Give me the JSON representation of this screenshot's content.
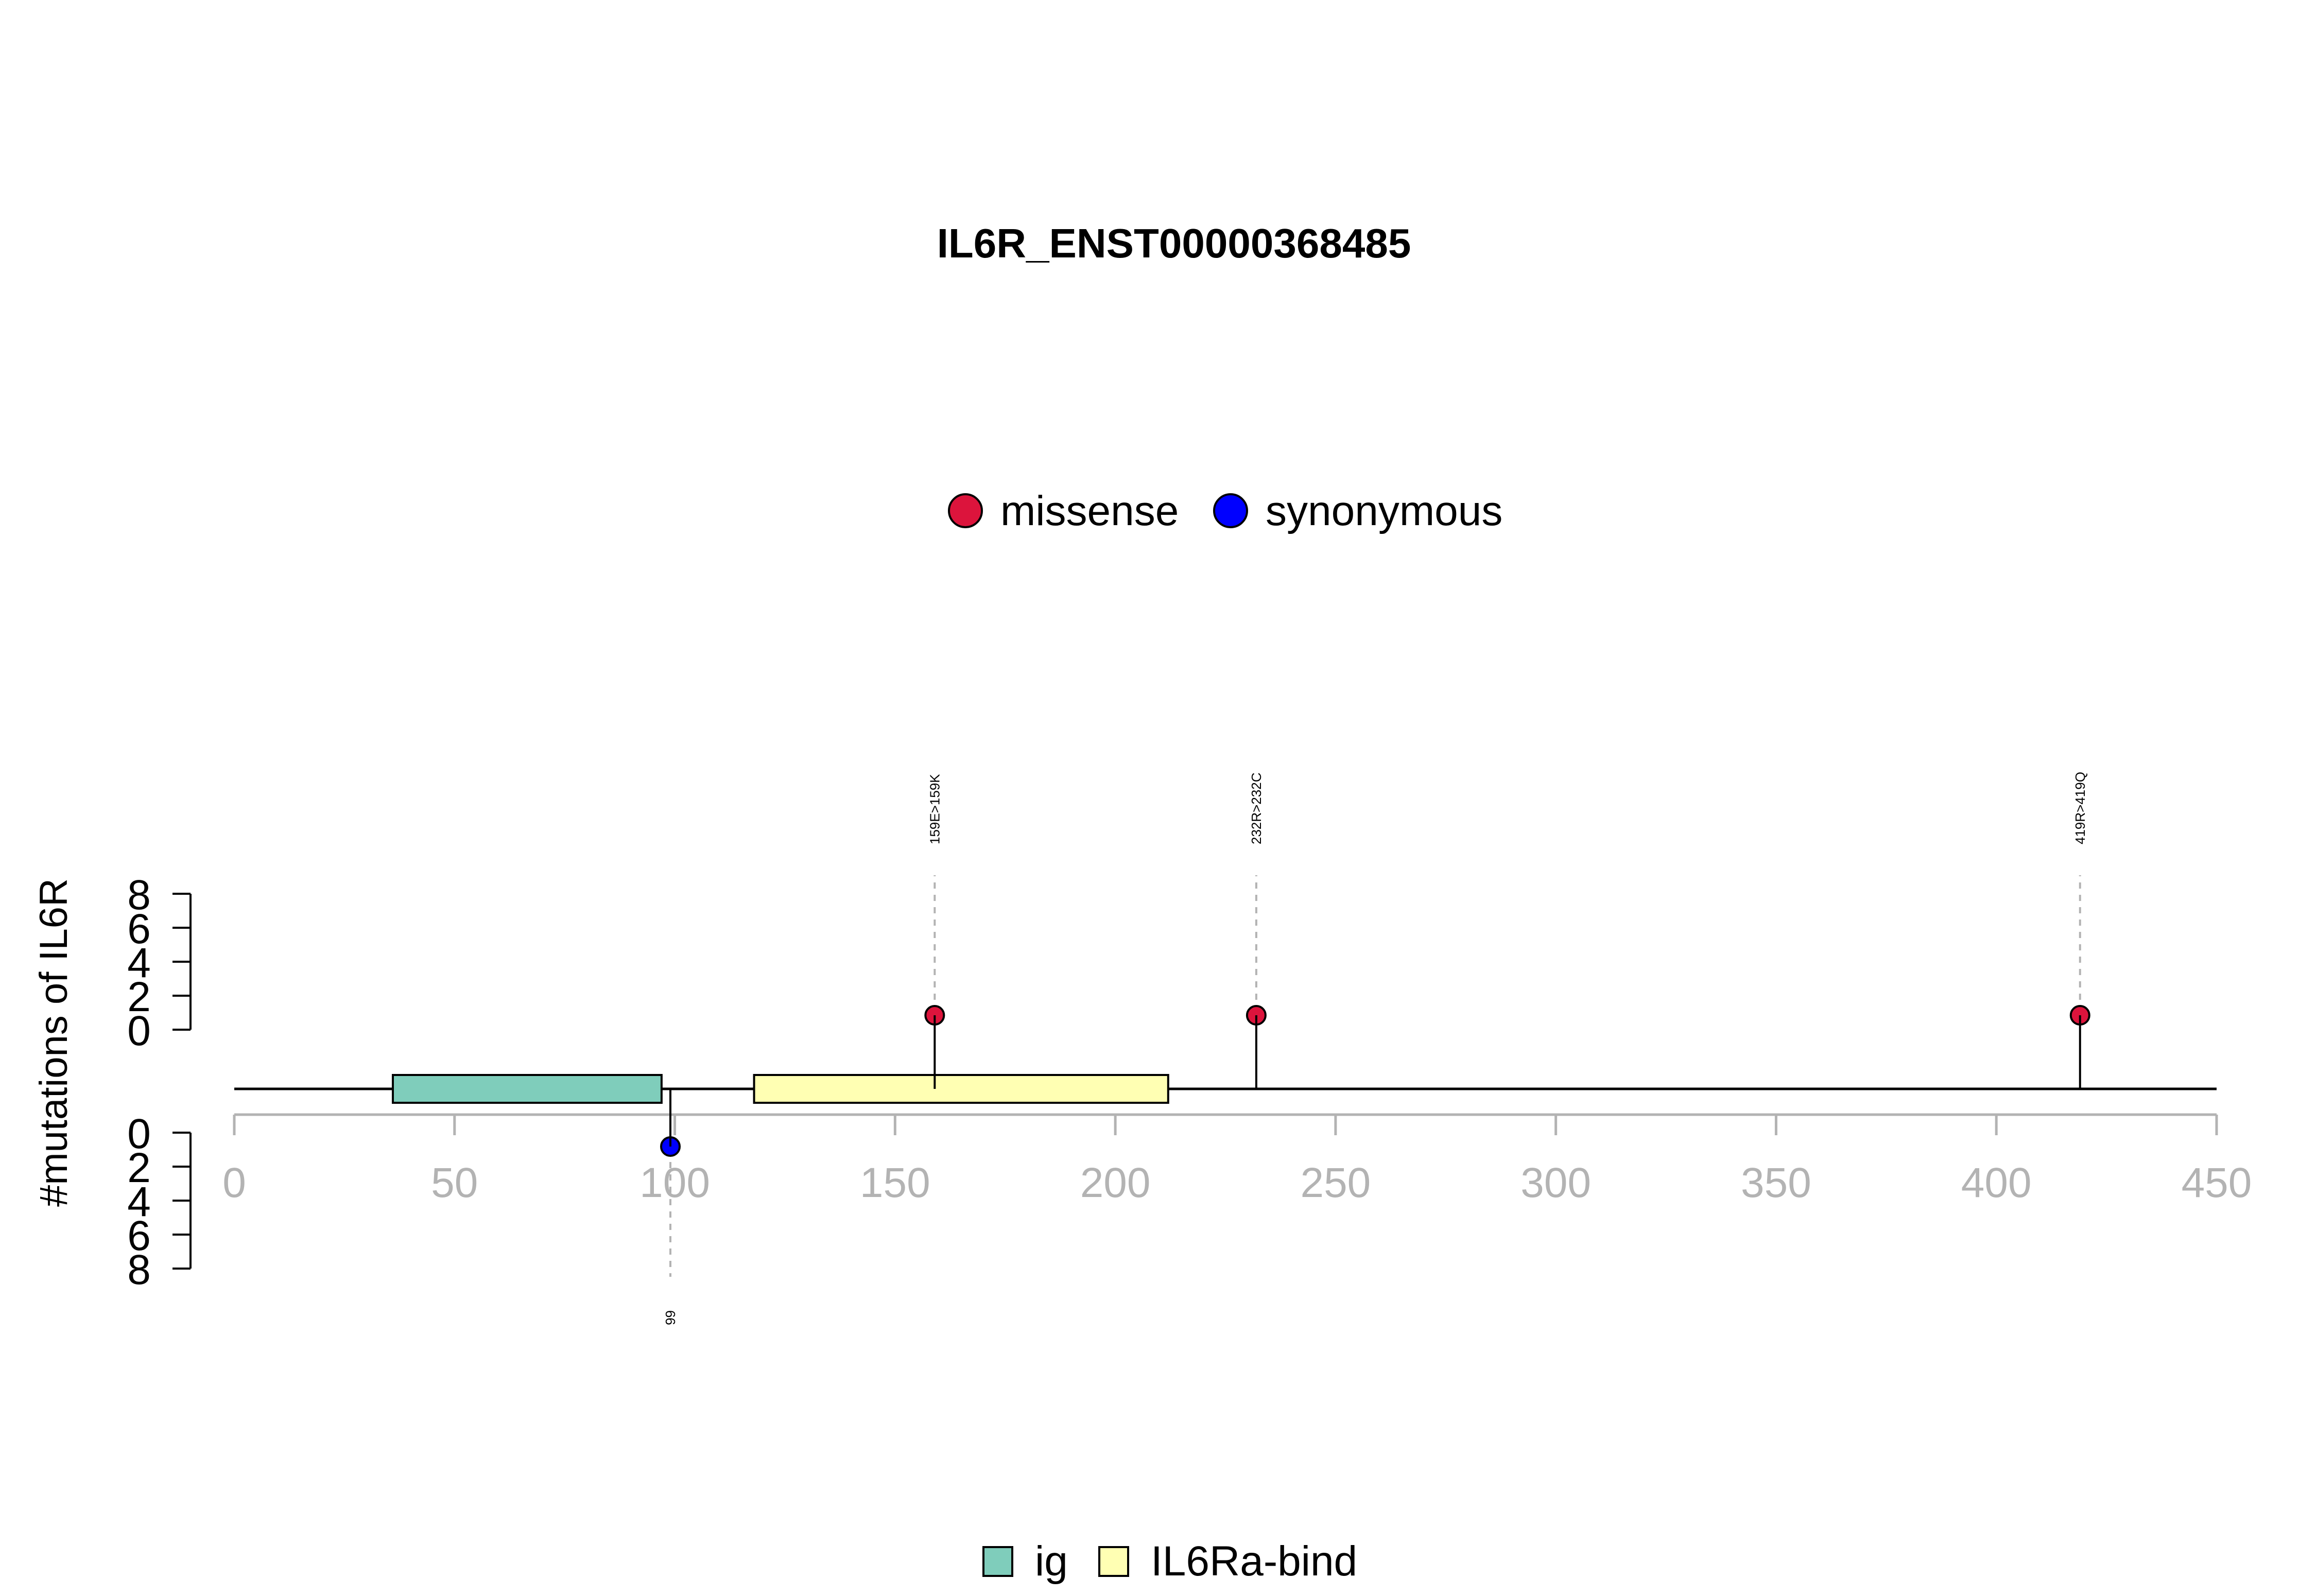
{
  "chart_data": {
    "type": "lollipop",
    "title": "IL6R_ENST00000368485",
    "ylabel": "#mutations of IL6R",
    "xlim": [
      0,
      450
    ],
    "x_ticks": [
      0,
      50,
      100,
      150,
      200,
      250,
      300,
      350,
      400,
      450
    ],
    "y_ticks": [
      0,
      2,
      4,
      6,
      8
    ],
    "ylim": [
      0,
      8
    ],
    "mutation_legend": [
      {
        "name": "missense",
        "color": "#DC143C"
      },
      {
        "name": "synonymous",
        "color": "#0000FF"
      }
    ],
    "domain_legend": [
      {
        "name": "ig",
        "color": "#7FCDBB"
      },
      {
        "name": "IL6Ra-bind",
        "color": "#FFFFB3"
      }
    ],
    "domains": [
      {
        "name": "ig",
        "start": 36,
        "end": 97
      },
      {
        "name": "IL6Ra-bind",
        "start": 118,
        "end": 212
      }
    ],
    "mutations": [
      {
        "position": 99,
        "count": 1,
        "type": "synonymous",
        "label": "99",
        "side": "down"
      },
      {
        "position": 159,
        "count": 1,
        "type": "missense",
        "label": "159E>159K",
        "side": "up"
      },
      {
        "position": 232,
        "count": 1,
        "type": "missense",
        "label": "232R>232C",
        "side": "up"
      },
      {
        "position": 419,
        "count": 1,
        "type": "missense",
        "label": "419R>419Q",
        "side": "up"
      }
    ]
  }
}
